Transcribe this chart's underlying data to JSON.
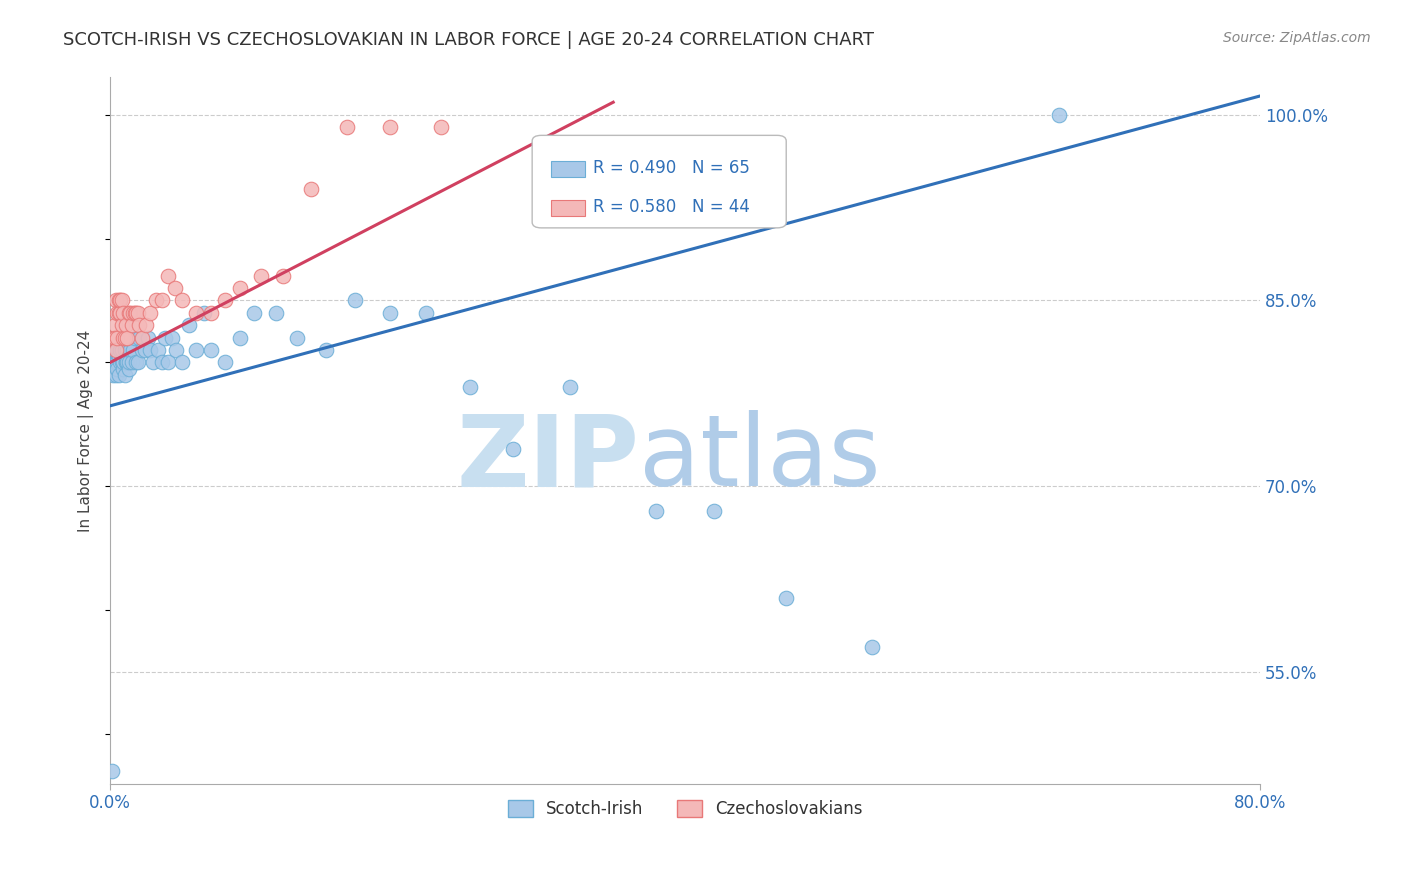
{
  "title": "SCOTCH-IRISH VS CZECHOSLOVAKIAN IN LABOR FORCE | AGE 20-24 CORRELATION CHART",
  "source": "Source: ZipAtlas.com",
  "ylabel": "In Labor Force | Age 20-24",
  "xlim": [
    0.0,
    0.8
  ],
  "ylim": [
    0.46,
    1.03
  ],
  "yticks": [
    0.55,
    0.7,
    0.85,
    1.0
  ],
  "yticklabels": [
    "55.0%",
    "70.0%",
    "85.0%",
    "100.0%"
  ],
  "blue_R": 0.49,
  "blue_N": 65,
  "pink_R": 0.58,
  "pink_N": 44,
  "blue_color": "#a8c8e8",
  "blue_edge_color": "#6baed6",
  "pink_color": "#f4b8b8",
  "pink_edge_color": "#e87878",
  "blue_line_color": "#3070b8",
  "pink_line_color": "#d04060",
  "legend_blue_label": "Scotch-Irish",
  "legend_pink_label": "Czechoslovakians",
  "blue_x": [
    0.002,
    0.003,
    0.003,
    0.004,
    0.004,
    0.005,
    0.005,
    0.005,
    0.006,
    0.006,
    0.007,
    0.007,
    0.008,
    0.008,
    0.009,
    0.009,
    0.01,
    0.01,
    0.011,
    0.011,
    0.012,
    0.012,
    0.013,
    0.013,
    0.014,
    0.015,
    0.016,
    0.017,
    0.018,
    0.019,
    0.02,
    0.022,
    0.024,
    0.026,
    0.028,
    0.03,
    0.033,
    0.036,
    0.038,
    0.04,
    0.043,
    0.046,
    0.05,
    0.055,
    0.06,
    0.065,
    0.07,
    0.08,
    0.09,
    0.1,
    0.115,
    0.13,
    0.15,
    0.17,
    0.195,
    0.22,
    0.25,
    0.28,
    0.32,
    0.38,
    0.42,
    0.47,
    0.53,
    0.66,
    0.001
  ],
  "blue_y": [
    0.79,
    0.8,
    0.81,
    0.79,
    0.8,
    0.8,
    0.795,
    0.81,
    0.79,
    0.805,
    0.8,
    0.81,
    0.8,
    0.81,
    0.795,
    0.8,
    0.79,
    0.81,
    0.8,
    0.8,
    0.8,
    0.81,
    0.795,
    0.8,
    0.81,
    0.8,
    0.81,
    0.82,
    0.8,
    0.8,
    0.82,
    0.81,
    0.81,
    0.82,
    0.81,
    0.8,
    0.81,
    0.8,
    0.82,
    0.8,
    0.82,
    0.81,
    0.8,
    0.83,
    0.81,
    0.84,
    0.81,
    0.8,
    0.82,
    0.84,
    0.84,
    0.82,
    0.81,
    0.85,
    0.84,
    0.84,
    0.78,
    0.73,
    0.78,
    0.68,
    0.68,
    0.61,
    0.57,
    1.0,
    0.47
  ],
  "pink_x": [
    0.002,
    0.003,
    0.003,
    0.004,
    0.004,
    0.005,
    0.005,
    0.006,
    0.006,
    0.007,
    0.007,
    0.008,
    0.008,
    0.009,
    0.009,
    0.01,
    0.011,
    0.012,
    0.013,
    0.014,
    0.015,
    0.016,
    0.017,
    0.018,
    0.019,
    0.02,
    0.022,
    0.025,
    0.028,
    0.032,
    0.036,
    0.04,
    0.045,
    0.05,
    0.06,
    0.07,
    0.08,
    0.09,
    0.105,
    0.12,
    0.14,
    0.165,
    0.195,
    0.23
  ],
  "pink_y": [
    0.82,
    0.83,
    0.82,
    0.85,
    0.81,
    0.84,
    0.82,
    0.84,
    0.85,
    0.84,
    0.85,
    0.83,
    0.85,
    0.84,
    0.82,
    0.82,
    0.83,
    0.82,
    0.84,
    0.84,
    0.83,
    0.84,
    0.84,
    0.84,
    0.84,
    0.83,
    0.82,
    0.83,
    0.84,
    0.85,
    0.85,
    0.87,
    0.86,
    0.85,
    0.84,
    0.84,
    0.85,
    0.86,
    0.87,
    0.87,
    0.94,
    0.99,
    0.99,
    0.99
  ],
  "blue_line_x0": 0.0,
  "blue_line_y0": 0.765,
  "blue_line_x1": 0.8,
  "blue_line_y1": 1.015,
  "pink_line_x0": 0.0,
  "pink_line_y0": 0.8,
  "pink_line_x1": 0.35,
  "pink_line_y1": 1.01
}
